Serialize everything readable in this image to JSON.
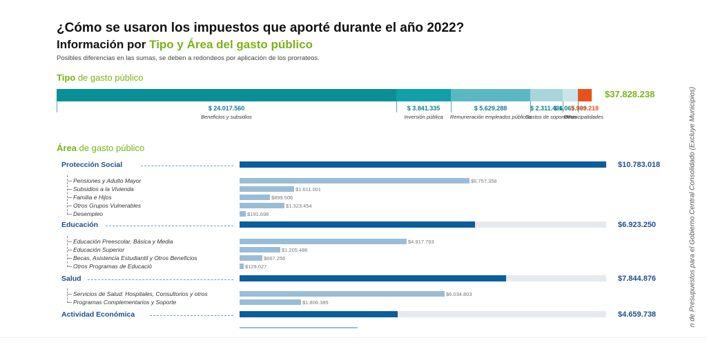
{
  "header": {
    "title": "¿Cómo se usaron los impuestos que aporté durante el año 2022?",
    "subtitle_prefix": "Información por ",
    "subtitle_highlight": "Tipo y Área del gasto público",
    "note": "Posibles diferencias en las sumas, se deben a redondeos por aplicación de los prorrateos."
  },
  "side_note": "n de Presupuestos para el Gobierno Central Consolidado (Excluye Municipios)",
  "colors": {
    "green": "#7ab317",
    "navy": "#1f4e8c",
    "main_bar": "#0a5e9c",
    "sub_bar": "#9bbcd6",
    "track": "#e6e9ed"
  },
  "chart_data": [
    {
      "type": "bar",
      "orientation": "horizontal-stacked",
      "title_bold": "Tipo",
      "title_rest": " de gasto público",
      "total": "$37.828.238",
      "segments": [
        {
          "label": "Beneficios y subsidios",
          "value": 24017560,
          "value_label": "$ 24.017.560",
          "color": "#0b8f96"
        },
        {
          "label": "Inversión pública",
          "value": 3841335,
          "value_label": "$ 3.841.335",
          "color": "#0fa0a8"
        },
        {
          "label": "Remuneración empleados públicos",
          "value": 5629288,
          "value_label": "$ 5.629.288",
          "color": "#5ab8c2"
        },
        {
          "label": "Gastos de soporte",
          "value": 2311436,
          "value_label": "$ 2.311.436",
          "color": "#a8d5db"
        },
        {
          "label": "Otros",
          "value": 1065399,
          "value_label": "$ 1.065.399",
          "color": "#c9e5e9"
        },
        {
          "label": "Municipalidades",
          "value": 963218,
          "value_label": "$ 963.218",
          "color": "#e8521a",
          "label_color": "#e8521a"
        }
      ]
    },
    {
      "type": "bar",
      "orientation": "horizontal",
      "title_bold": "Área",
      "title_rest": " de gasto público",
      "xlim": [
        0,
        10783018
      ],
      "areas": [
        {
          "name": "Protección Social",
          "value": 10783018,
          "value_label": "$10.783.018",
          "items": [
            {
              "name": "Pensiones y Adulto Mayor",
              "value": 6757358,
              "value_label": "$6.757.358"
            },
            {
              "name": "Subsidios a la Vivienda",
              "value": 1611001,
              "value_label": "$1.611.001"
            },
            {
              "name": "Familia e Hijos",
              "value": 899506,
              "value_label": "$899.506"
            },
            {
              "name": "Otros Grupos Vulnerables",
              "value": 1323454,
              "value_label": "$1.323.454"
            },
            {
              "name": "Desempleo",
              "value": 191698,
              "value_label": "$191.698"
            }
          ]
        },
        {
          "name": "Educación",
          "value": 6923250,
          "value_label": "$6.923.250",
          "items": [
            {
              "name": "Educación Preescolar, Básica y Media",
              "value": 4917793,
              "value_label": "$4.917.793"
            },
            {
              "name": "Educación Superior",
              "value": 1205486,
              "value_label": "$1.205.486"
            },
            {
              "name": "Becas, Asistencia Estudiantil y Otros Beneficios",
              "value": 667256,
              "value_label": "$667.256"
            },
            {
              "name": "Otros Programas de Educació",
              "value": 129027,
              "value_label": "$129.027"
            }
          ]
        },
        {
          "name": "Salud",
          "value": 7844876,
          "value_label": "$7.844.876",
          "items": [
            {
              "name": "Servicios de Salud: Hospitales, Consultorios y otros",
              "value": 6034803,
              "value_label": "$6.034.803"
            },
            {
              "name": "Programas Complementarios y Soporte",
              "value": 1806385,
              "value_label": "$1.806.385"
            }
          ]
        },
        {
          "name": "Actividad Económica",
          "value": 4659738,
          "value_label": "$4.659.738",
          "items": []
        }
      ]
    }
  ]
}
